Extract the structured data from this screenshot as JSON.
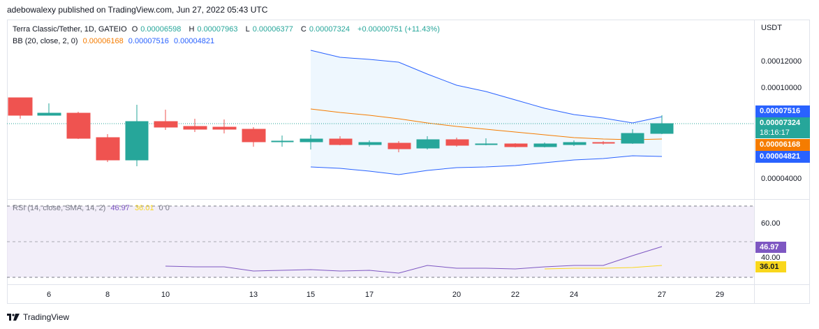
{
  "publisher_line": "adebowalexy published on TradingView.com, Jun 27, 2022 05:43 UTC",
  "legend": {
    "symbol": "Terra Classic/Tether, 1D, GATEIO",
    "o_label": "O",
    "o_value": "0.00006598",
    "h_label": "H",
    "h_value": "0.00007963",
    "l_label": "L",
    "l_value": "0.00006377",
    "c_label": "C",
    "c_value": "0.00007324",
    "change": "+0.00000751 (+11.43%)",
    "bb_label": "BB (20, close, 2, 0)",
    "bb_basis": "0.00006168",
    "bb_upper": "0.00007516",
    "bb_lower": "0.00004821",
    "rsi_label": "RSI (14, close, SMA, 14, 2)",
    "rsi_value": "46.97",
    "rsi_ma": "36.01",
    "rsi_extra": "0 0"
  },
  "price_axis": {
    "currency": "USDT",
    "ticks": [
      "0.00012000",
      "0.00010000",
      "0.00004000"
    ]
  },
  "badges": {
    "upper": "0.00007516",
    "close": "0.00007324",
    "countdown": "18:16:17",
    "basis": "0.00006168",
    "lower": "0.00004821",
    "rsi": "46.97",
    "rsi_ma": "36.01"
  },
  "rsi_axis": {
    "ticks": [
      "60.00",
      "40.00"
    ]
  },
  "x_axis": {
    "ticks": [
      "6",
      "8",
      "10",
      "13",
      "15",
      "17",
      "20",
      "22",
      "24",
      "27",
      "29"
    ]
  },
  "brand": "TradingView",
  "colors": {
    "up": "#26a69a",
    "down": "#ef5350",
    "bb_upper": "#2962ff",
    "bb_basis": "#f57c00",
    "bb_fill": "#e3f2fd",
    "rsi_line": "#7e57c2",
    "rsi_ma": "#f9d71c",
    "rsi_band": "#ede7f6"
  }
}
